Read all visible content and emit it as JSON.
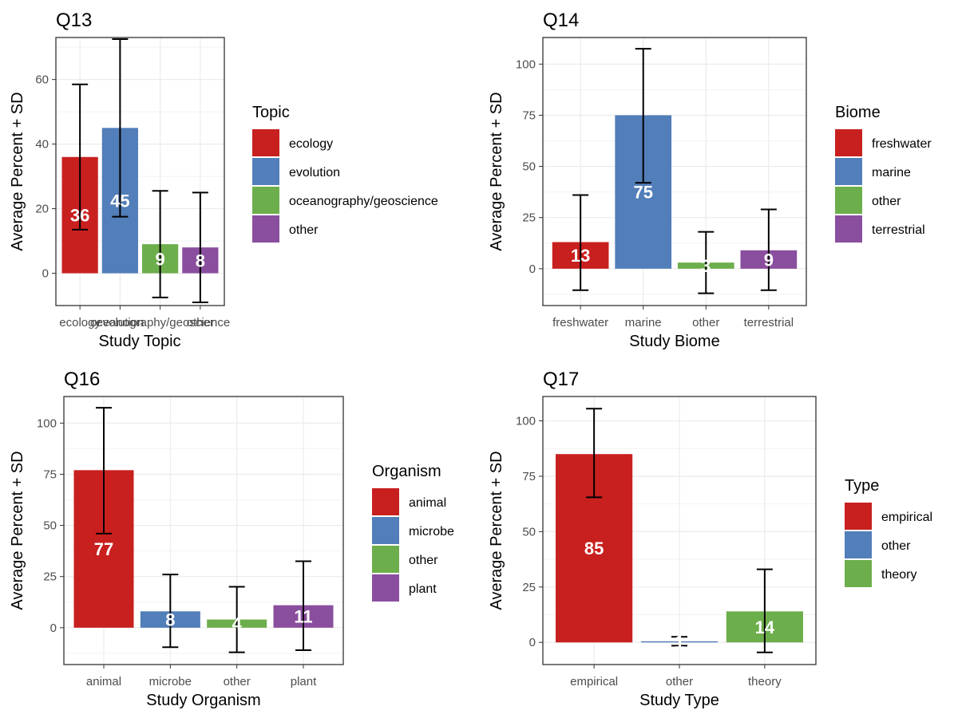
{
  "chart_data": [
    {
      "id": "q13",
      "type": "bar",
      "title": "Q13",
      "xlabel": "Study Topic",
      "ylabel": "Average Percent + SD",
      "ylim": [
        -10,
        73
      ],
      "yticks": [
        0,
        20,
        40,
        60
      ],
      "categories": [
        "ecology",
        "evolution",
        "oceanography/geoscience",
        "other"
      ],
      "values": [
        36,
        45,
        9,
        8
      ],
      "labels": [
        "36",
        "45",
        "9",
        "8"
      ],
      "error_low": [
        13.5,
        17.5,
        -7.5,
        -9
      ],
      "error_high": [
        58.5,
        72.5,
        25.5,
        25
      ],
      "colors": [
        "#C8201F",
        "#527EB9",
        "#6DAE4C",
        "#8A4E9E"
      ],
      "legend": {
        "title": "Topic",
        "entries": [
          "ecology",
          "evolution",
          "oceanography/geoscience",
          "other"
        ]
      },
      "grid": true
    },
    {
      "id": "q14",
      "type": "bar",
      "title": "Q14",
      "xlabel": "Study Biome",
      "ylabel": "Average Percent + SD",
      "ylim": [
        -18,
        113
      ],
      "yticks": [
        0,
        25,
        50,
        75,
        100
      ],
      "categories": [
        "freshwater",
        "marine",
        "other",
        "terrestrial"
      ],
      "values": [
        13,
        75,
        3,
        9
      ],
      "labels": [
        "13",
        "75",
        "3",
        "9"
      ],
      "error_low": [
        -10.5,
        42,
        -12,
        -10.5
      ],
      "error_high": [
        36,
        107.5,
        18,
        29
      ],
      "colors": [
        "#C8201F",
        "#527EB9",
        "#6DAE4C",
        "#8A4E9E"
      ],
      "legend": {
        "title": "Biome",
        "entries": [
          "freshwater",
          "marine",
          "other",
          "terrestrial"
        ]
      },
      "grid": true
    },
    {
      "id": "q16",
      "type": "bar",
      "title": "Q16",
      "xlabel": "Study Organism",
      "ylabel": "Average Percent + SD",
      "ylim": [
        -18,
        113
      ],
      "yticks": [
        0,
        25,
        50,
        75,
        100
      ],
      "categories": [
        "animal",
        "microbe",
        "other",
        "plant"
      ],
      "values": [
        77,
        8,
        4,
        11
      ],
      "labels": [
        "77",
        "8",
        "4",
        "11"
      ],
      "error_low": [
        46,
        -9.5,
        -12,
        -11
      ],
      "error_high": [
        107.5,
        26,
        20,
        32.5
      ],
      "colors": [
        "#C8201F",
        "#527EB9",
        "#6DAE4C",
        "#8A4E9E"
      ],
      "legend": {
        "title": "Organism",
        "entries": [
          "animal",
          "microbe",
          "other",
          "plant"
        ]
      },
      "grid": true
    },
    {
      "id": "q17",
      "type": "bar",
      "title": "Q17",
      "xlabel": "Study Type",
      "ylabel": "Average Percent + SD",
      "ylim": [
        -10,
        111
      ],
      "yticks": [
        0,
        25,
        50,
        75,
        100
      ],
      "categories": [
        "empirical",
        "other",
        "theory"
      ],
      "values": [
        85,
        0.5,
        14
      ],
      "labels": [
        "85",
        "1",
        "14"
      ],
      "error_low": [
        65.5,
        -1.5,
        -4.5
      ],
      "error_high": [
        105.5,
        2.5,
        33
      ],
      "colors": [
        "#C8201F",
        "#527EB9",
        "#6DAE4C"
      ],
      "legend": {
        "title": "Type",
        "entries": [
          "empirical",
          "other",
          "theory"
        ]
      },
      "grid": true
    }
  ]
}
